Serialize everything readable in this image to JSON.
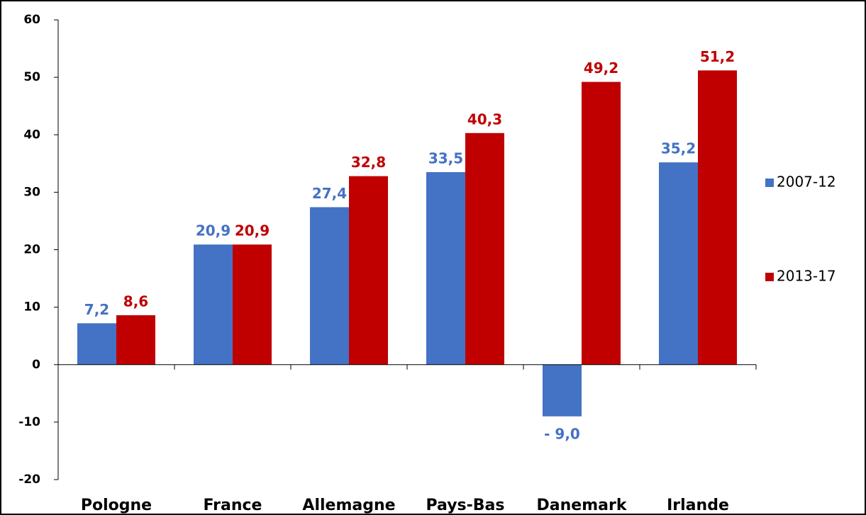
{
  "chart_data": {
    "type": "bar",
    "categories": [
      "Pologne",
      "France",
      "Allemagne",
      "Pays-Bas",
      "Danemark",
      "Irlande"
    ],
    "series": [
      {
        "name": "2007-12",
        "color": "#4472c4",
        "values": [
          7.2,
          20.9,
          27.4,
          33.5,
          -9.0,
          35.2
        ],
        "value_labels": [
          "7,2",
          "20,9",
          "27,4",
          "33,5",
          "- 9,0",
          "35,2"
        ]
      },
      {
        "name": "2013-17",
        "color": "#c00000",
        "values": [
          8.6,
          20.9,
          32.8,
          40.3,
          49.2,
          51.2
        ],
        "value_labels": [
          "8,6",
          "20,9",
          "32,8",
          "40,3",
          "49,2",
          "51,2"
        ]
      }
    ],
    "ylim": [
      -20,
      60
    ],
    "yticks": [
      -20,
      -10,
      0,
      10,
      20,
      30,
      40,
      50,
      60
    ],
    "legend": "right"
  }
}
